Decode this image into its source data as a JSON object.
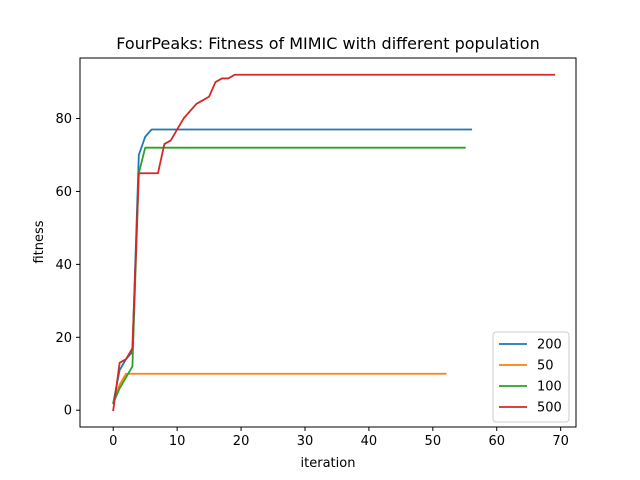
{
  "chart_data": {
    "type": "line",
    "title": "FourPeaks: Fitness of MIMIC with different population",
    "xlabel": "iteration",
    "ylabel": "fitness",
    "xlim": [
      -5.2,
      72.4
    ],
    "ylim": [
      -4.6,
      96.6
    ],
    "xticks": [
      0,
      10,
      20,
      30,
      40,
      50,
      60,
      70
    ],
    "yticks": [
      0,
      20,
      40,
      60,
      80
    ],
    "grid": false,
    "legend_position": "lower-right",
    "series": [
      {
        "name": "200",
        "color": "#1f77b4",
        "x": [
          0,
          1,
          2,
          3,
          4,
          5,
          6,
          56
        ],
        "y": [
          2,
          11,
          14,
          16,
          70,
          75,
          77,
          77
        ]
      },
      {
        "name": "50",
        "color": "#ff7f0e",
        "x": [
          0,
          1,
          2,
          52
        ],
        "y": [
          2,
          7,
          10,
          10
        ]
      },
      {
        "name": "100",
        "color": "#2ca02c",
        "x": [
          0,
          1,
          2,
          3,
          4,
          5,
          55
        ],
        "y": [
          2,
          6,
          9,
          12,
          65,
          72,
          72
        ]
      },
      {
        "name": "500",
        "color": "#d62728",
        "x": [
          0,
          1,
          2,
          3,
          4,
          5,
          6,
          7,
          8,
          9,
          10,
          11,
          12,
          13,
          14,
          15,
          16,
          17,
          18,
          19,
          69
        ],
        "y": [
          0,
          13,
          14,
          17,
          65,
          65,
          65,
          65,
          73,
          74,
          77,
          80,
          82,
          84,
          85,
          86,
          90,
          91,
          91,
          92,
          92
        ]
      }
    ]
  }
}
